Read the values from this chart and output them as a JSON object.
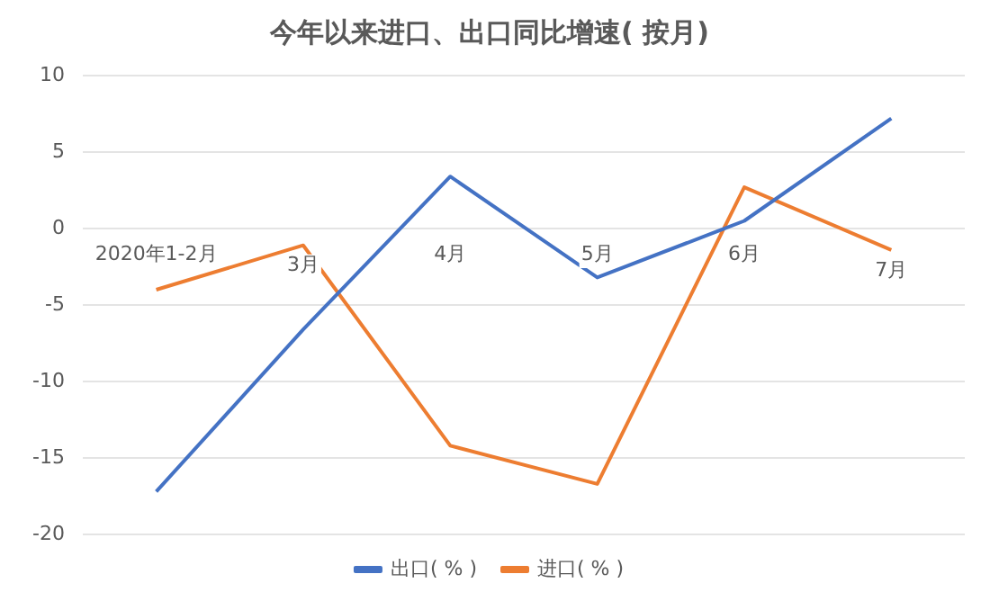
{
  "chart_data": {
    "type": "line",
    "title": "今年以来进口、出口同比增速( 按月)",
    "categories": [
      "2020年1-2月",
      "3月",
      "4月",
      "5月",
      "6月",
      "7月"
    ],
    "series": [
      {
        "name": "出口( % )",
        "color": "#4472c4",
        "values": [
          -17.2,
          -6.6,
          3.4,
          -3.2,
          0.5,
          7.2
        ]
      },
      {
        "name": "进口( % )",
        "color": "#ed7d31",
        "values": [
          -4.0,
          -1.1,
          -14.2,
          -16.7,
          2.7,
          -1.4
        ]
      }
    ],
    "ylim": [
      -20,
      10
    ],
    "yticks": [
      -20,
      -15,
      -10,
      -5,
      0,
      5,
      10
    ],
    "grid": "y",
    "legend": "bottom",
    "marker": "none",
    "line_style": "solid"
  }
}
